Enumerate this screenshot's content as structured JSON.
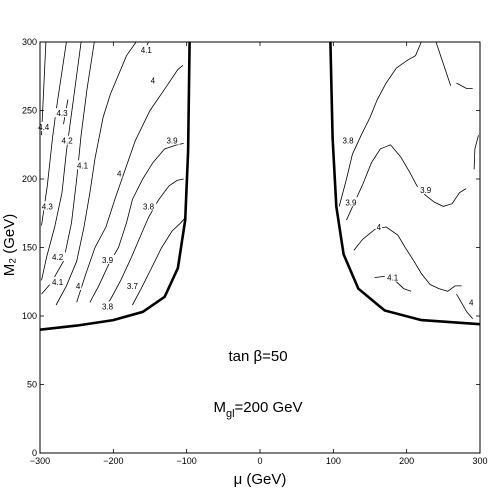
{
  "chart_data": {
    "type": "line",
    "xlabel": "μ (GeV)",
    "ylabel": "M₂ (GeV)",
    "xlim": [
      -300,
      300
    ],
    "ylim": [
      0,
      300
    ],
    "xticks": [
      -300,
      -200,
      -100,
      0,
      100,
      200,
      300
    ],
    "yticks": [
      0,
      50,
      100,
      150,
      200,
      250,
      300
    ],
    "annotations": [
      {
        "text": "tan β=50",
        "x": 0,
        "y": 66
      },
      {
        "text": "M",
        "sub": "gl",
        "rest": "=200 GeV",
        "x": 0,
        "y": 30
      }
    ],
    "boundary": [
      {
        "name": "left",
        "points": [
          [
            -300,
            90
          ],
          [
            -250,
            93
          ],
          [
            -200,
            97
          ],
          [
            -160,
            103
          ],
          [
            -130,
            114
          ],
          [
            -112,
            135
          ],
          [
            -102,
            170
          ],
          [
            -98,
            220
          ],
          [
            -96,
            300
          ]
        ]
      },
      {
        "name": "right",
        "points": [
          [
            96,
            300
          ],
          [
            99,
            230
          ],
          [
            104,
            180
          ],
          [
            114,
            145
          ],
          [
            134,
            120
          ],
          [
            170,
            104
          ],
          [
            220,
            97
          ],
          [
            300,
            94
          ]
        ]
      }
    ],
    "contours": [
      {
        "label": "4.4",
        "points": [
          [
            -298,
            232
          ],
          [
            -292,
            300
          ]
        ]
      },
      {
        "label": "4.3",
        "points": [
          [
            -298,
            166
          ],
          [
            -290,
            195
          ],
          [
            -283,
            230
          ],
          [
            -278,
            250
          ],
          [
            -264,
            300
          ]
        ]
      },
      {
        "label": "4.3",
        "points": [
          [
            -268,
            240
          ],
          [
            -262,
            258
          ]
        ]
      },
      {
        "label": "4.2",
        "points": [
          [
            -298,
            126
          ],
          [
            -291,
            143
          ],
          [
            -280,
            165
          ],
          [
            -270,
            190
          ],
          [
            -264,
            220
          ],
          [
            -256,
            252
          ],
          [
            -244,
            300
          ]
        ]
      },
      {
        "label": "4.1",
        "points": [
          [
            -298,
            116
          ],
          [
            -285,
            124
          ],
          [
            -268,
            140
          ],
          [
            -257,
            168
          ],
          [
            -250,
            200
          ],
          [
            -244,
            232
          ],
          [
            -236,
            265
          ],
          [
            -226,
            300
          ]
        ]
      },
      {
        "label": "4.1",
        "points": [
          [
            -160,
            291
          ],
          [
            -152,
            300
          ]
        ]
      },
      {
        "label": "4",
        "points": [
          [
            -278,
            108
          ],
          [
            -264,
            122
          ],
          [
            -250,
            140
          ],
          [
            -240,
            165
          ],
          [
            -232,
            190
          ],
          [
            -225,
            215
          ],
          [
            -214,
            245
          ],
          [
            -204,
            262
          ],
          [
            -182,
            290
          ],
          [
            -169,
            300
          ]
        ]
      },
      {
        "label": "4",
        "points": [
          [
            -250,
            110
          ],
          [
            -238,
            130
          ],
          [
            -225,
            150
          ],
          [
            -210,
            165
          ],
          [
            -198,
            185
          ],
          [
            -185,
            205
          ],
          [
            -170,
            228
          ],
          [
            -150,
            250
          ],
          [
            -127,
            268
          ],
          [
            -112,
            280
          ],
          [
            -105,
            283
          ]
        ]
      },
      {
        "label": "3.9",
        "points": [
          [
            -232,
            110
          ],
          [
            -220,
            122
          ],
          [
            -206,
            138
          ],
          [
            -193,
            150
          ],
          [
            -182,
            168
          ],
          [
            -174,
            185
          ],
          [
            -160,
            200
          ],
          [
            -146,
            212
          ],
          [
            -130,
            222
          ],
          [
            -113,
            225
          ],
          [
            -104,
            226
          ]
        ]
      },
      {
        "label": "3.8",
        "points": [
          [
            -216,
            104
          ],
          [
            -204,
            112
          ],
          [
            -190,
            126
          ],
          [
            -176,
            142
          ],
          [
            -164,
            157
          ],
          [
            -152,
            172
          ],
          [
            -138,
            185
          ],
          [
            -124,
            195
          ],
          [
            -113,
            199
          ],
          [
            -104,
            200
          ]
        ]
      },
      {
        "label": "3.7",
        "points": [
          [
            -174,
            108
          ],
          [
            -162,
            120
          ],
          [
            -148,
            135
          ],
          [
            -134,
            150
          ],
          [
            -120,
            162
          ],
          [
            -108,
            168
          ],
          [
            -103,
            171
          ]
        ]
      },
      {
        "label": "3.8",
        "points": [
          [
            108,
            180
          ],
          [
            118,
            200
          ],
          [
            126,
            218
          ],
          [
            138,
            232
          ],
          [
            150,
            245
          ],
          [
            160,
            258
          ],
          [
            172,
            270
          ],
          [
            186,
            281
          ],
          [
            202,
            287
          ],
          [
            212,
            290
          ],
          [
            220,
            300
          ]
        ]
      },
      {
        "label": "3.9",
        "points": [
          [
            118,
            170
          ],
          [
            128,
            182
          ],
          [
            140,
            196
          ],
          [
            152,
            212
          ],
          [
            164,
            222
          ],
          [
            178,
            225
          ],
          [
            192,
            216
          ],
          [
            204,
            205
          ],
          [
            214,
            195
          ],
          [
            226,
            188
          ],
          [
            238,
            183
          ],
          [
            250,
            180
          ],
          [
            262,
            182
          ],
          [
            272,
            190
          ],
          [
            281,
            193
          ]
        ]
      },
      {
        "label": "4",
        "points": [
          [
            128,
            148
          ],
          [
            140,
            156
          ],
          [
            156,
            163
          ],
          [
            172,
            165
          ],
          [
            188,
            159
          ],
          [
            198,
            150
          ],
          [
            210,
            140
          ],
          [
            220,
            131
          ],
          [
            232,
            123
          ],
          [
            244,
            120
          ],
          [
            256,
            118
          ],
          [
            266,
            122
          ],
          [
            275,
            122
          ]
        ]
      },
      {
        "label": "4.1",
        "points": [
          [
            156,
            128
          ],
          [
            170,
            129
          ],
          [
            184,
            126
          ],
          [
            196,
            120
          ],
          [
            206,
            118
          ]
        ]
      },
      {
        "label": "4",
        "points": [
          [
            268,
            116
          ],
          [
            282,
            103
          ],
          [
            290,
            98
          ]
        ]
      },
      {
        "label": "",
        "points": [
          [
            292,
            207
          ],
          [
            293,
            222
          ],
          [
            298,
            232
          ]
        ]
      },
      {
        "label": "",
        "points": [
          [
            268,
            270
          ],
          [
            282,
            266
          ],
          [
            290,
            266
          ]
        ]
      },
      {
        "label": "",
        "points": [
          [
            240,
            300
          ],
          [
            260,
            268
          ]
        ]
      }
    ],
    "contour_labels": [
      {
        "text": "4.4",
        "x": -295,
        "y": 238
      },
      {
        "text": "4.3",
        "x": -290,
        "y": 180
      },
      {
        "text": "4.3",
        "x": -270,
        "y": 248
      },
      {
        "text": "4.2",
        "x": -276,
        "y": 143
      },
      {
        "text": "4.2",
        "x": -263,
        "y": 228
      },
      {
        "text": "4.1",
        "x": -276,
        "y": 125
      },
      {
        "text": "4.1",
        "x": -242,
        "y": 210
      },
      {
        "text": "4.1",
        "x": -155,
        "y": 294
      },
      {
        "text": "4",
        "x": -248,
        "y": 122
      },
      {
        "text": "4",
        "x": -146,
        "y": 272
      },
      {
        "text": "4",
        "x": -192,
        "y": 204
      },
      {
        "text": "3.9",
        "x": -208,
        "y": 141
      },
      {
        "text": "3.9",
        "x": -120,
        "y": 228
      },
      {
        "text": "3.8",
        "x": -208,
        "y": 107
      },
      {
        "text": "3.8",
        "x": -152,
        "y": 180
      },
      {
        "text": "3.7",
        "x": -174,
        "y": 122
      },
      {
        "text": "3.8",
        "x": 120,
        "y": 228
      },
      {
        "text": "3.9",
        "x": 124,
        "y": 183
      },
      {
        "text": "3.9",
        "x": 226,
        "y": 192
      },
      {
        "text": "4",
        "x": 162,
        "y": 165
      },
      {
        "text": "4.1",
        "x": 181,
        "y": 128
      },
      {
        "text": "4",
        "x": 288,
        "y": 110
      }
    ]
  }
}
